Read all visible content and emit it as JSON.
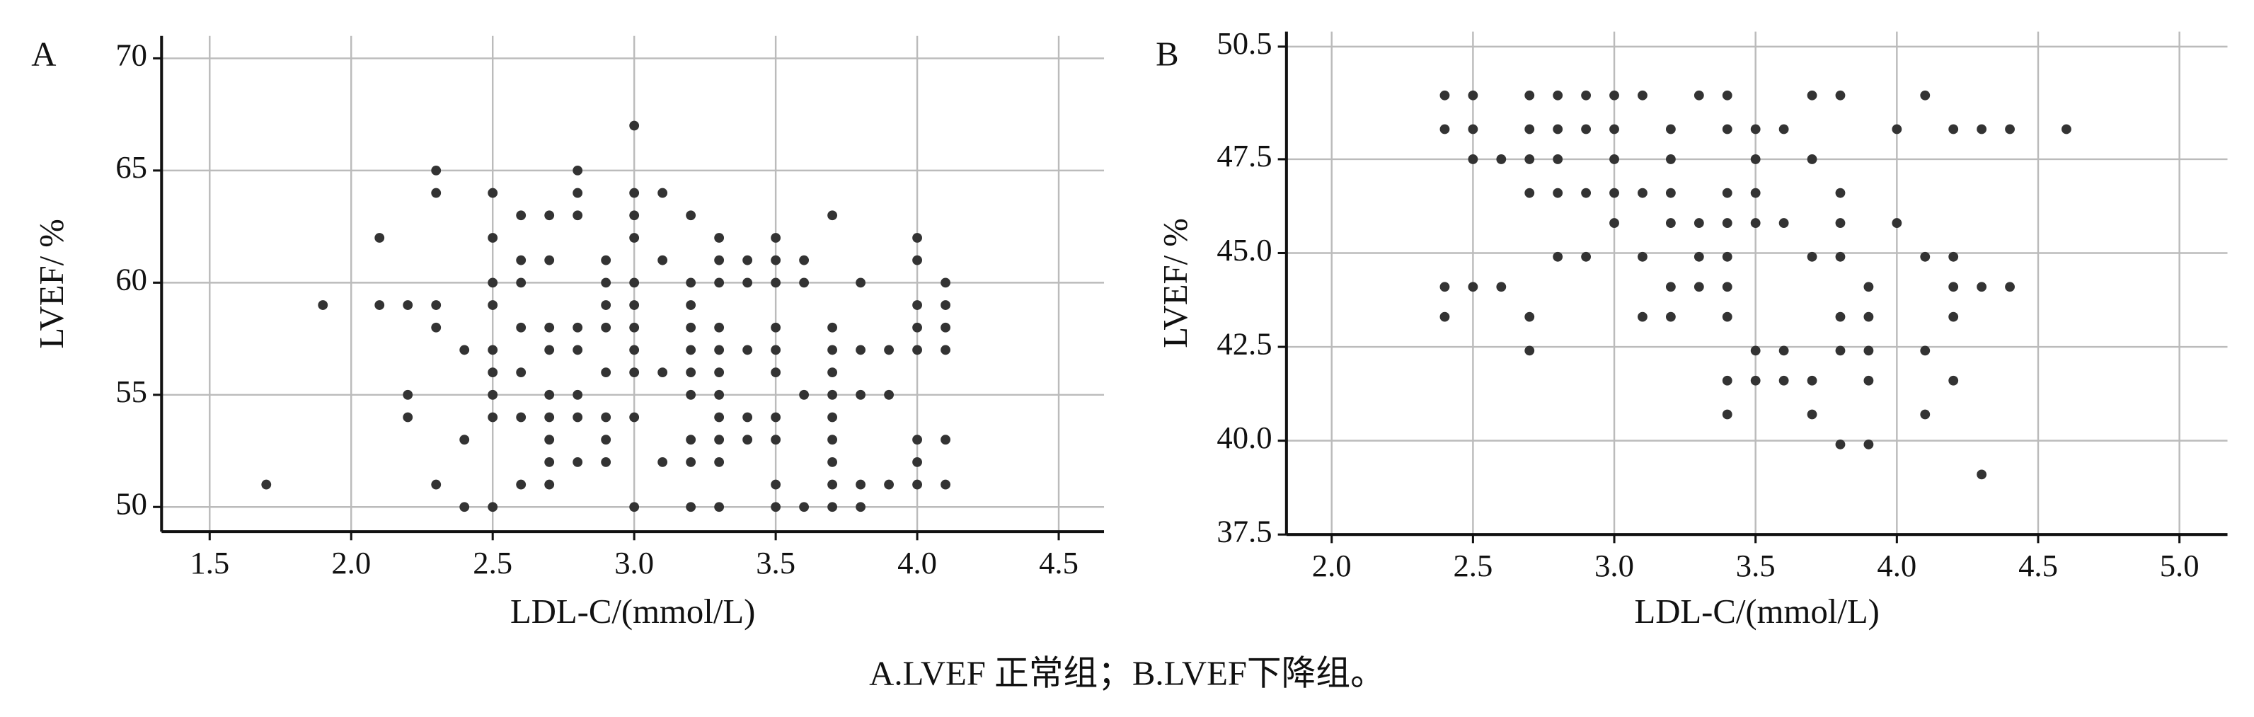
{
  "chart_data": [
    {
      "type": "scatter",
      "panel_label": "A",
      "xlabel": "LDL-C/(mmol/L)",
      "ylabel": "LVEF/ %",
      "xlim": [
        1.33,
        4.66
      ],
      "xticks": [
        {
          "value": 1.5,
          "label": "1.5"
        },
        {
          "value": 2,
          "label": "2.0"
        },
        {
          "value": 2.5,
          "label": "2.5"
        },
        {
          "value": 3,
          "label": "3.0"
        },
        {
          "value": 3.5,
          "label": "3.5"
        },
        {
          "value": 4,
          "label": "4.0"
        },
        {
          "value": 4.5,
          "label": "4.5"
        }
      ],
      "ylim": [
        48.9,
        71
      ],
      "yticks": [
        50,
        55,
        60,
        65,
        70
      ],
      "grid": true,
      "series": [
        {
          "color": "#333333",
          "x": [
            1.7,
            1.9,
            2.1,
            2.1,
            2.2,
            2.2,
            2.2,
            2.3,
            2.3,
            2.3,
            2.3,
            2.3,
            2.4,
            2.4,
            2.4,
            2.5,
            2.5,
            2.5,
            2.5,
            2.5,
            2.5,
            2.5,
            2.5,
            2.5,
            2.6,
            2.6,
            2.6,
            2.6,
            2.6,
            2.6,
            2.6,
            2.7,
            2.7,
            2.7,
            2.7,
            2.7,
            2.7,
            2.7,
            2.7,
            2.7,
            2.8,
            2.8,
            2.8,
            2.8,
            2.8,
            2.8,
            2.8,
            2.8,
            2.9,
            2.9,
            2.9,
            2.9,
            2.9,
            2.9,
            2.9,
            2.9,
            3.0,
            3.0,
            3.0,
            3.0,
            3.0,
            3.0,
            3.0,
            3.0,
            3.0,
            3.0,
            3.0,
            3.1,
            3.1,
            3.1,
            3.1,
            3.2,
            3.2,
            3.2,
            3.2,
            3.2,
            3.2,
            3.2,
            3.2,
            3.2,
            3.2,
            3.3,
            3.3,
            3.3,
            3.3,
            3.3,
            3.3,
            3.3,
            3.3,
            3.3,
            3.3,
            3.3,
            3.4,
            3.4,
            3.4,
            3.4,
            3.4,
            3.5,
            3.5,
            3.5,
            3.5,
            3.5,
            3.5,
            3.5,
            3.5,
            3.5,
            3.5,
            3.6,
            3.6,
            3.6,
            3.6,
            3.7,
            3.7,
            3.7,
            3.7,
            3.7,
            3.7,
            3.7,
            3.7,
            3.7,
            3.7,
            3.8,
            3.8,
            3.8,
            3.8,
            3.8,
            3.9,
            3.9,
            3.9,
            4.0,
            4.0,
            4.0,
            4.0,
            4.0,
            4.0,
            4.0,
            4.0,
            4.1,
            4.1,
            4.1,
            4.1,
            4.1,
            4.1
          ],
          "values": [
            51,
            59,
            62,
            59,
            59,
            55,
            54,
            65,
            64,
            59,
            58,
            51,
            57,
            53,
            50,
            64,
            62,
            60,
            59,
            57,
            56,
            55,
            54,
            50,
            63,
            61,
            60,
            58,
            56,
            54,
            51,
            63,
            61,
            58,
            57,
            55,
            54,
            53,
            52,
            51,
            65,
            64,
            63,
            58,
            57,
            55,
            54,
            52,
            61,
            60,
            59,
            58,
            56,
            54,
            53,
            52,
            67,
            64,
            63,
            62,
            60,
            59,
            58,
            57,
            56,
            54,
            50,
            64,
            61,
            56,
            52,
            63,
            60,
            59,
            58,
            57,
            56,
            55,
            53,
            52,
            50,
            62,
            61,
            60,
            58,
            57,
            56,
            55,
            54,
            53,
            52,
            50,
            61,
            60,
            57,
            54,
            53,
            62,
            61,
            60,
            58,
            57,
            56,
            54,
            53,
            51,
            50,
            61,
            60,
            55,
            50,
            63,
            58,
            57,
            56,
            55,
            54,
            53,
            52,
            51,
            50,
            60,
            57,
            55,
            51,
            50,
            57,
            55,
            51,
            62,
            61,
            59,
            58,
            57,
            53,
            52,
            51,
            60,
            59,
            58,
            57,
            53,
            51
          ]
        }
      ]
    },
    {
      "type": "scatter",
      "panel_label": "B",
      "xlabel": "LDL-C/(mmol/L)",
      "ylabel": "LVEF/ %",
      "xlim": [
        1.84,
        5.17
      ],
      "xticks": [
        {
          "value": 2,
          "label": "2.0"
        },
        {
          "value": 2.5,
          "label": "2.5"
        },
        {
          "value": 3,
          "label": "3.0"
        },
        {
          "value": 3.5,
          "label": "3.5"
        },
        {
          "value": 4,
          "label": "4.0"
        },
        {
          "value": 4.5,
          "label": "4.5"
        },
        {
          "value": 5,
          "label": "5.0"
        }
      ],
      "ylim": [
        37.5,
        50.9
      ],
      "yticks": [
        37.5,
        {
          "value": 40,
          "label": "40.0"
        },
        42.5,
        {
          "value": 45,
          "label": "45.0"
        },
        47.5,
        50.5
      ],
      "grid": true,
      "series": [
        {
          "color": "#333333",
          "x": [
            2.4,
            2.4,
            2.4,
            2.4,
            2.5,
            2.5,
            2.5,
            2.5,
            2.6,
            2.6,
            2.7,
            2.7,
            2.7,
            2.7,
            2.7,
            2.7,
            2.8,
            2.8,
            2.8,
            2.8,
            2.8,
            2.9,
            2.9,
            2.9,
            2.9,
            3.0,
            3.0,
            3.0,
            3.0,
            3.0,
            3.1,
            3.1,
            3.1,
            3.1,
            3.2,
            3.2,
            3.2,
            3.2,
            3.2,
            3.2,
            3.3,
            3.3,
            3.3,
            3.3,
            3.4,
            3.4,
            3.4,
            3.4,
            3.4,
            3.4,
            3.4,
            3.4,
            3.4,
            3.5,
            3.5,
            3.5,
            3.5,
            3.5,
            3.5,
            3.6,
            3.6,
            3.6,
            3.6,
            3.7,
            3.7,
            3.7,
            3.7,
            3.7,
            3.8,
            3.8,
            3.8,
            3.8,
            3.8,
            3.8,
            3.8,
            3.9,
            3.9,
            3.9,
            3.9,
            3.9,
            4.0,
            4.0,
            4.1,
            4.1,
            4.1,
            4.1,
            4.2,
            4.2,
            4.2,
            4.2,
            4.2,
            4.3,
            4.3,
            4.3,
            4.4,
            4.4,
            4.6
          ],
          "values": [
            49.2,
            48.3,
            44.1,
            43.3,
            49.2,
            48.3,
            47.5,
            44.1,
            47.5,
            44.1,
            49.2,
            48.3,
            47.5,
            46.6,
            43.3,
            42.4,
            49.2,
            48.3,
            47.5,
            46.6,
            44.9,
            49.2,
            48.3,
            46.6,
            44.9,
            49.2,
            48.3,
            47.5,
            46.6,
            45.8,
            49.2,
            46.6,
            44.9,
            43.3,
            48.3,
            47.5,
            46.6,
            45.8,
            44.1,
            43.3,
            49.2,
            45.8,
            44.9,
            44.1,
            49.2,
            48.3,
            46.6,
            45.8,
            44.9,
            44.1,
            43.3,
            41.6,
            40.7,
            48.3,
            47.5,
            46.6,
            45.8,
            42.4,
            41.6,
            48.3,
            45.8,
            42.4,
            41.6,
            49.2,
            47.5,
            44.9,
            41.6,
            40.7,
            49.2,
            46.6,
            45.8,
            44.9,
            43.3,
            42.4,
            39.9,
            44.1,
            43.3,
            42.4,
            41.6,
            39.9,
            48.3,
            45.8,
            49.2,
            44.9,
            42.4,
            40.7,
            48.3,
            44.9,
            44.1,
            43.3,
            41.6,
            48.3,
            44.1,
            39.1,
            48.3,
            44.1,
            48.3
          ]
        }
      ]
    }
  ],
  "caption": "A.LVEF 正常组；B.LVEF下降组。"
}
